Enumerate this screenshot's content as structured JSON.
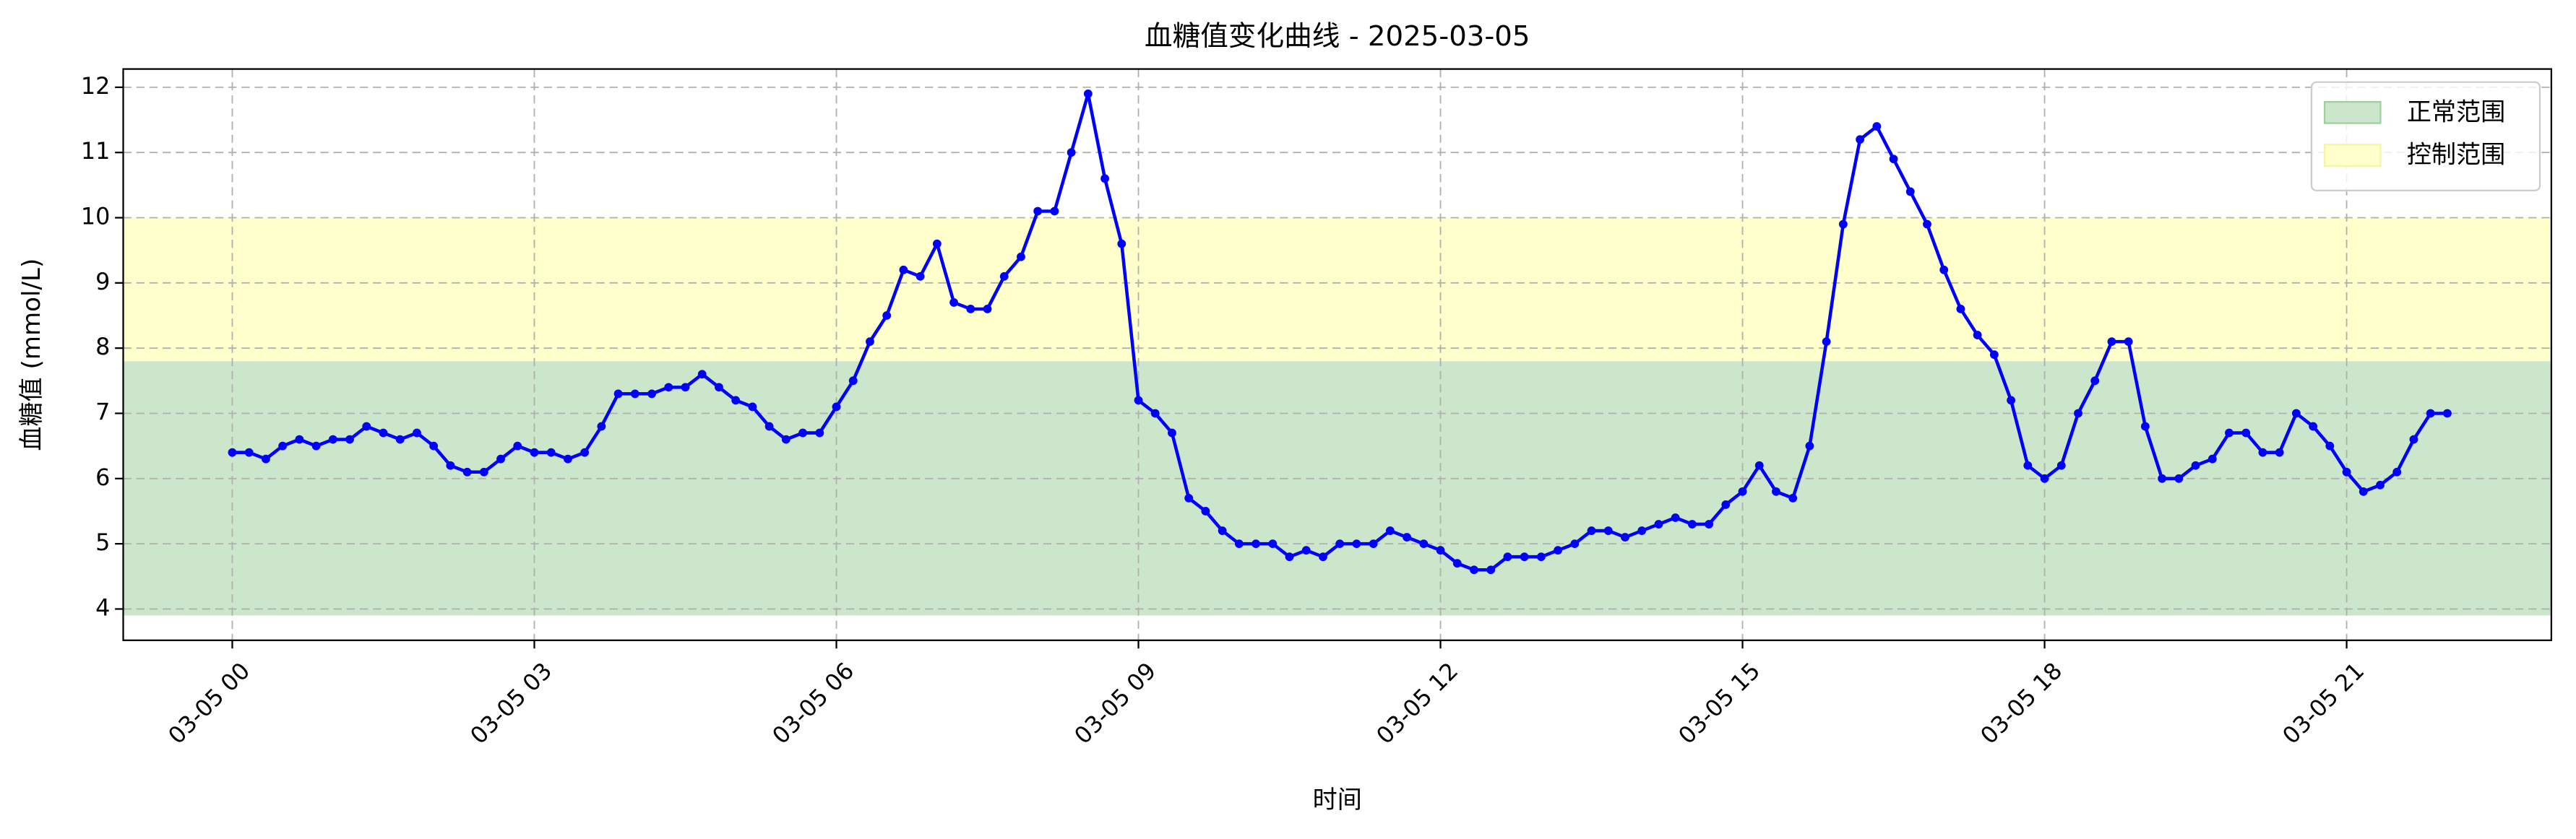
{
  "chart_data": {
    "type": "line",
    "title": "血糖值变化曲线 - 2025-03-05",
    "x_label": "时间",
    "y_label": "血糖值 (mmol/L)",
    "color": "#0000ff",
    "grid": true,
    "legend": "upper right",
    "bands": [
      {
        "name": "正常范围",
        "range": [
          3.9,
          7.8
        ],
        "color": "#cce6cc"
      },
      {
        "name": "控制范围",
        "range": [
          7.8,
          10.0
        ],
        "color": "#ffffcc"
      }
    ],
    "xlim": [
      -65,
      1382
    ],
    "ylim": [
      3.52,
      12.28
    ],
    "xticks": [
      {
        "value": 0,
        "label": "03-05 00"
      },
      {
        "value": 180,
        "label": "03-05 03"
      },
      {
        "value": 360,
        "label": "03-05 06"
      },
      {
        "value": 540,
        "label": "03-05 09"
      },
      {
        "value": 720,
        "label": "03-05 12"
      },
      {
        "value": 900,
        "label": "03-05 15"
      },
      {
        "value": 1080,
        "label": "03-05 18"
      },
      {
        "value": 1260,
        "label": "03-05 21"
      }
    ],
    "yticks": [
      4,
      5,
      6,
      7,
      8,
      9,
      10,
      11,
      12
    ],
    "x": [
      0,
      10,
      20,
      30,
      40,
      50,
      60,
      70,
      80,
      90,
      100,
      110,
      120,
      130,
      140,
      150,
      160,
      170,
      180,
      190,
      200,
      210,
      220,
      230,
      240,
      250,
      260,
      270,
      280,
      290,
      300,
      310,
      320,
      330,
      340,
      350,
      360,
      370,
      380,
      390,
      400,
      410,
      420,
      430,
      440,
      450,
      460,
      470,
      480,
      490,
      500,
      510,
      520,
      530,
      540,
      550,
      560,
      570,
      580,
      590,
      600,
      610,
      620,
      630,
      640,
      650,
      660,
      670,
      680,
      690,
      700,
      710,
      720,
      730,
      740,
      750,
      760,
      770,
      780,
      790,
      800,
      810,
      820,
      830,
      840,
      850,
      860,
      870,
      880,
      890,
      900,
      910,
      920,
      930,
      940,
      950,
      960,
      970,
      980,
      990,
      1000,
      1010,
      1020,
      1030,
      1040,
      1050,
      1060,
      1070,
      1080,
      1090,
      1100,
      1110,
      1120,
      1130,
      1140,
      1150,
      1160,
      1170,
      1180,
      1190,
      1200,
      1210,
      1220,
      1230,
      1240,
      1250,
      1260,
      1270,
      1280,
      1290,
      1300,
      1310,
      1320
    ],
    "values": [
      6.4,
      6.4,
      6.3,
      6.5,
      6.6,
      6.5,
      6.6,
      6.6,
      6.8,
      6.7,
      6.6,
      6.7,
      6.5,
      6.2,
      6.1,
      6.1,
      6.3,
      6.5,
      6.4,
      6.4,
      6.3,
      6.4,
      6.8,
      7.3,
      7.3,
      7.3,
      7.4,
      7.4,
      7.6,
      7.4,
      7.2,
      7.1,
      6.8,
      6.6,
      6.7,
      6.7,
      7.1,
      7.5,
      8.1,
      8.5,
      9.2,
      9.1,
      9.6,
      8.7,
      8.6,
      8.6,
      9.1,
      9.4,
      10.1,
      10.1,
      11.0,
      11.9,
      10.6,
      9.6,
      7.2,
      7.0,
      6.7,
      5.7,
      5.5,
      5.2,
      5.0,
      5.0,
      5.0,
      4.8,
      4.9,
      4.8,
      5.0,
      5.0,
      5.0,
      5.2,
      5.1,
      5.0,
      4.9,
      4.7,
      4.6,
      4.6,
      4.8,
      4.8,
      4.8,
      4.9,
      5.0,
      5.2,
      5.2,
      5.1,
      5.2,
      5.3,
      5.4,
      5.3,
      5.3,
      5.6,
      5.8,
      6.2,
      5.8,
      5.7,
      6.5,
      8.1,
      9.9,
      11.2,
      11.4,
      10.9,
      10.4,
      9.9,
      9.2,
      8.6,
      8.2,
      7.9,
      7.2,
      6.2,
      6.0,
      6.2,
      7.0,
      7.5,
      8.1,
      8.1,
      6.8,
      6.0,
      6.0,
      6.2,
      6.3,
      6.7,
      6.7,
      6.4,
      6.4,
      7.0,
      6.8,
      6.5,
      6.1,
      5.8,
      5.9,
      6.1,
      6.6,
      7.0,
      7.0
    ]
  }
}
